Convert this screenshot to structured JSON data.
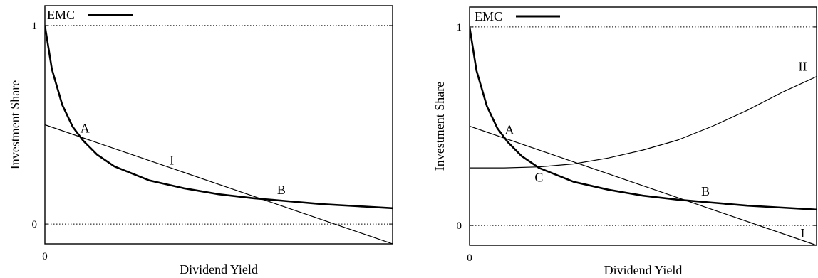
{
  "chart_data": [
    {
      "type": "line",
      "title": "",
      "xlabel": "Dividend Yield",
      "ylabel": "Investment Share",
      "x_tick_labels": [
        "0"
      ],
      "y_tick_labels": [
        "1",
        "0"
      ],
      "xlim": [
        0,
        1
      ],
      "ylim": [
        -0.1,
        1.1
      ],
      "x_ticks": [
        0
      ],
      "y_ticks": [
        1,
        0
      ],
      "grid": "dotted horizontal lines at y = 0 and y = 1",
      "legend": {
        "position": "top-left",
        "entries": [
          "EMC"
        ]
      },
      "series": [
        {
          "name": "EMC",
          "style": "thick",
          "x": [
            0,
            0.02,
            0.05,
            0.08,
            0.11,
            0.15,
            0.2,
            0.3,
            0.4,
            0.5,
            0.6,
            0.7,
            0.8,
            0.9,
            1.0
          ],
          "y": [
            1.0,
            0.78,
            0.6,
            0.49,
            0.42,
            0.35,
            0.29,
            0.22,
            0.18,
            0.15,
            0.13,
            0.115,
            0.1,
            0.09,
            0.08
          ]
        },
        {
          "style": "thin",
          "x": [
            0,
            1.0
          ],
          "y": [
            0.5,
            -0.1
          ]
        }
      ],
      "annotations": [
        {
          "text": "A",
          "x": 0.115,
          "y": 0.46
        },
        {
          "text": "I",
          "x": 0.365,
          "y": 0.3
        },
        {
          "text": "B",
          "x": 0.68,
          "y": 0.15
        }
      ]
    },
    {
      "type": "line",
      "title": "",
      "xlabel": "Dividend Yield",
      "ylabel": "Investment Share",
      "x_tick_labels": [
        "0"
      ],
      "y_tick_labels": [
        "1",
        "0"
      ],
      "xlim": [
        0,
        1
      ],
      "ylim": [
        -0.1,
        1.1
      ],
      "x_ticks": [
        0
      ],
      "y_ticks": [
        1,
        0
      ],
      "grid": "dotted horizontal lines at y = 0 and y = 1",
      "legend": {
        "position": "top-left",
        "entries": [
          "EMC"
        ]
      },
      "series": [
        {
          "name": "EMC",
          "style": "thick",
          "x": [
            0,
            0.02,
            0.05,
            0.08,
            0.11,
            0.15,
            0.2,
            0.3,
            0.4,
            0.5,
            0.6,
            0.7,
            0.8,
            0.9,
            1.0
          ],
          "y": [
            1.0,
            0.78,
            0.6,
            0.49,
            0.42,
            0.35,
            0.29,
            0.22,
            0.18,
            0.15,
            0.13,
            0.115,
            0.1,
            0.09,
            0.08
          ]
        },
        {
          "style": "thin",
          "x": [
            0,
            1.0
          ],
          "y": [
            0.5,
            -0.1
          ]
        },
        {
          "style": "thin",
          "x": [
            0,
            0.1,
            0.2,
            0.3,
            0.4,
            0.5,
            0.6,
            0.7,
            0.8,
            0.9,
            1.0
          ],
          "y": [
            0.29,
            0.29,
            0.295,
            0.31,
            0.34,
            0.38,
            0.43,
            0.5,
            0.58,
            0.67,
            0.75
          ]
        }
      ],
      "annotations": [
        {
          "text": "A",
          "x": 0.115,
          "y": 0.46
        },
        {
          "text": "C",
          "x": 0.2,
          "y": 0.22
        },
        {
          "text": "B",
          "x": 0.68,
          "y": 0.15
        },
        {
          "text": "II",
          "x": 0.96,
          "y": 0.78
        },
        {
          "text": "I",
          "x": 0.96,
          "y": -0.06
        }
      ]
    }
  ]
}
